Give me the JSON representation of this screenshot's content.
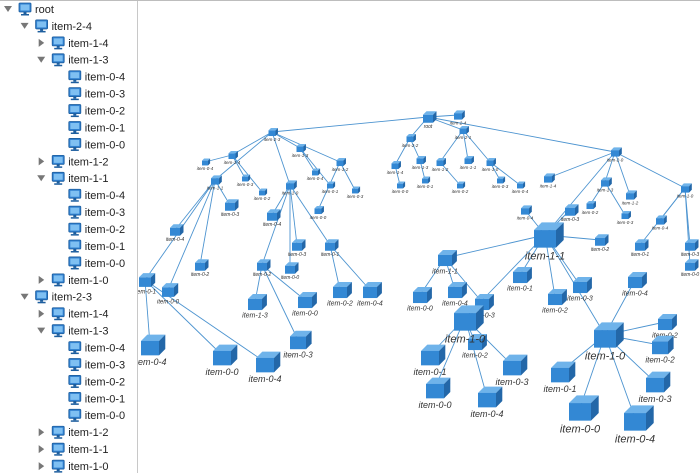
{
  "tree": {
    "rows": [
      {
        "label": "root",
        "level": 0,
        "expanded": true
      },
      {
        "label": "item-2-4",
        "level": 1,
        "expanded": true
      },
      {
        "label": "item-1-4",
        "level": 2,
        "expanded": false
      },
      {
        "label": "item-1-3",
        "level": 2,
        "expanded": true
      },
      {
        "label": "item-0-4",
        "level": 3
      },
      {
        "label": "item-0-3",
        "level": 3
      },
      {
        "label": "item-0-2",
        "level": 3
      },
      {
        "label": "item-0-1",
        "level": 3
      },
      {
        "label": "item-0-0",
        "level": 3
      },
      {
        "label": "item-1-2",
        "level": 2,
        "expanded": false
      },
      {
        "label": "item-1-1",
        "level": 2,
        "expanded": true
      },
      {
        "label": "item-0-4",
        "level": 3
      },
      {
        "label": "item-0-3",
        "level": 3
      },
      {
        "label": "item-0-2",
        "level": 3
      },
      {
        "label": "item-0-1",
        "level": 3
      },
      {
        "label": "item-0-0",
        "level": 3
      },
      {
        "label": "item-1-0",
        "level": 2,
        "expanded": false
      },
      {
        "label": "item-2-3",
        "level": 1,
        "expanded": true
      },
      {
        "label": "item-1-4",
        "level": 2,
        "expanded": false
      },
      {
        "label": "item-1-3",
        "level": 2,
        "expanded": true
      },
      {
        "label": "item-0-4",
        "level": 3
      },
      {
        "label": "item-0-3",
        "level": 3
      },
      {
        "label": "item-0-2",
        "level": 3
      },
      {
        "label": "item-0-1",
        "level": 3
      },
      {
        "label": "item-0-0",
        "level": 3
      },
      {
        "label": "item-1-2",
        "level": 2,
        "expanded": false
      },
      {
        "label": "item-1-1",
        "level": 2,
        "expanded": false
      },
      {
        "label": "item-1-0",
        "level": 2,
        "expanded": false
      }
    ]
  },
  "graph": {
    "nodes": [
      "root",
      "item-2-4",
      "item-2-3",
      "item-2-2",
      "item-2-1",
      "item-2-0",
      "item-1-4",
      "item-1-3",
      "item-1-2",
      "item-1-1",
      "item-1-0",
      "item-0-4",
      "item-0-3",
      "item-0-2",
      "item-0-4",
      "item-0-1",
      "item-0-3",
      "item-0-0",
      "item-0-4",
      "item-0-3",
      "item-0-2",
      "item-0-1",
      "item-0-0",
      "item-0-4",
      "item-0-3",
      "item-0-2",
      "item-0-1",
      "item-0-0",
      "item-0-4",
      "item-0-0",
      "item-0-4",
      "item-0-3",
      "item-0-0",
      "item-0-2",
      "item-0-4",
      "item-1-3",
      "item-1-4",
      "item-1-3",
      "item-1-2",
      "item-1-1",
      "item-1-0",
      "item-0-0",
      "item-0-1",
      "item-0-2",
      "item-0-3",
      "item-0-4",
      "item-1-4",
      "item-1-3",
      "item-1-2",
      "item-1-1",
      "item-1-0",
      "item-0-2",
      "item-0-3",
      "item-0-4",
      "item-0-3",
      "item-0-1",
      "item-0-0",
      "item-0-4",
      "item-0-3",
      "item-0-2",
      "item-1-1",
      "item-0-1",
      "item-0-2",
      "item-0-3",
      "item-1-0",
      "item-1-0",
      "item-0-0",
      "item-0-4",
      "item-0-3",
      "item-0-4",
      "item-0-2",
      "item-0-1",
      "item-0-0",
      "item-0-4",
      "item-0-3",
      "item-0-2",
      "item-0-1",
      "item-0-0",
      "item-0-4",
      "item-0-3",
      "item-0-2"
    ]
  }
}
